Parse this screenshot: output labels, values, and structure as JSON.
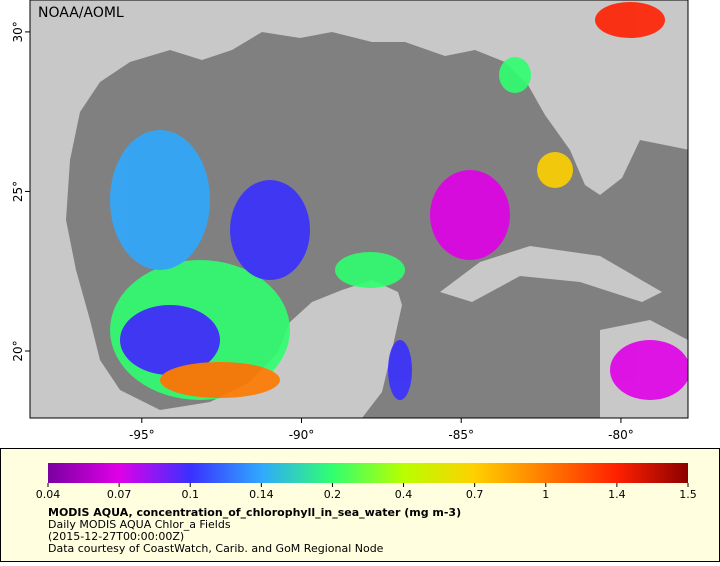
{
  "map": {
    "label": "NOAA/AOML",
    "xlim": [
      -98.5,
      -77.9
    ],
    "ylim": [
      17.9,
      31
    ],
    "xticks": [
      {
        "value": -95,
        "label": "-95°"
      },
      {
        "value": -90,
        "label": "-90°"
      },
      {
        "value": -85,
        "label": "-85°"
      },
      {
        "value": -80,
        "label": "-80°"
      }
    ],
    "yticks": [
      {
        "value": 20,
        "label": "20°"
      },
      {
        "value": 25,
        "label": "25°"
      },
      {
        "value": 30,
        "label": "30°"
      }
    ]
  },
  "colorbar": {
    "ticks": [
      0.04,
      0.07,
      0.1,
      0.14,
      0.2,
      0.4,
      0.7,
      1,
      1.4,
      1.5
    ],
    "colors": [
      "#7a00a0",
      "#e000e8",
      "#3a30ff",
      "#30a8ff",
      "#30ff70",
      "#b8ff00",
      "#ffd000",
      "#ff7a00",
      "#ff2000",
      "#8c0000"
    ]
  },
  "caption": {
    "title": "MODIS AQUA, concentration_of_chlorophyll_in_sea_water (mg m-3)",
    "line1": "Daily MODIS AQUA Chlor_a Fields",
    "line2": "(2015-12-27T00:00:00Z)",
    "line3": "Data courtesy of CoastWatch, Carib. and GoM Regional Node"
  }
}
